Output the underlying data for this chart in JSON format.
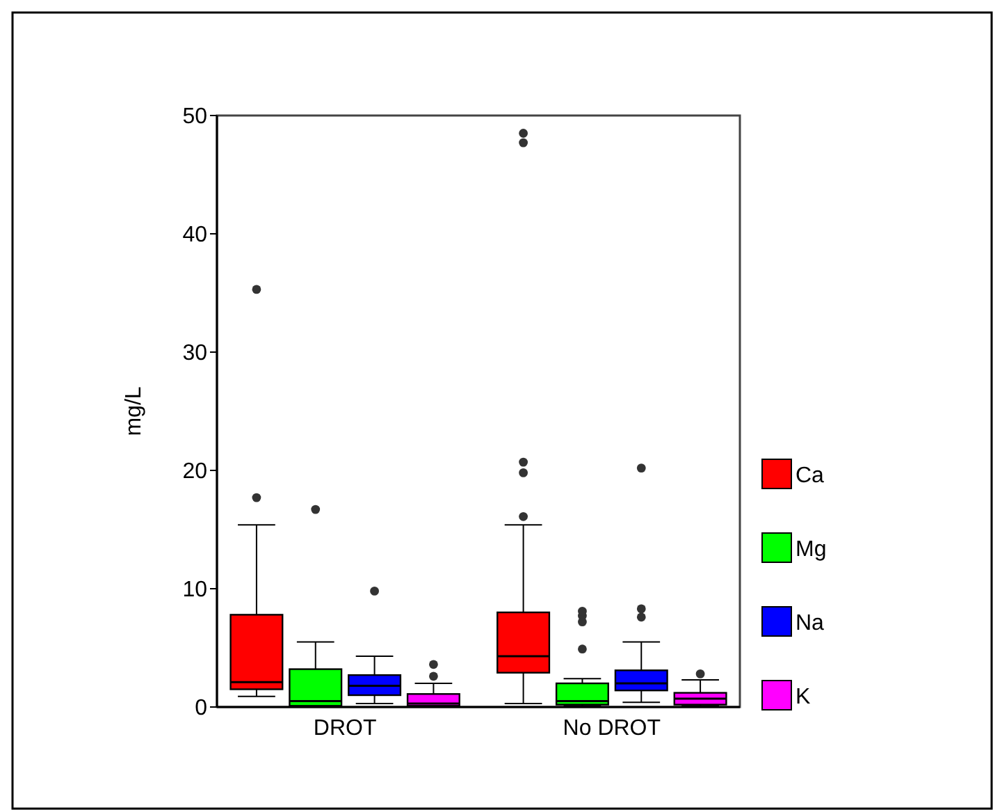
{
  "chart_data": {
    "type": "box",
    "ylabel": "mg/L",
    "categories": [
      "DROT",
      "No DROT"
    ],
    "ylim": [
      0,
      50
    ],
    "yticks": [
      0,
      10,
      20,
      30,
      40,
      50
    ],
    "legend": "right",
    "series": [
      {
        "name": "Ca",
        "color": "#ff0000",
        "boxes": [
          {
            "low": 0.9,
            "q1": 1.5,
            "median": 2.1,
            "q3": 7.8,
            "high": 15.4,
            "outliers": [
              17.7,
              35.3
            ]
          },
          {
            "low": 0.3,
            "q1": 2.9,
            "median": 4.3,
            "q3": 8.0,
            "high": 15.4,
            "outliers": [
              16.1,
              19.8,
              20.7,
              47.7,
              48.5
            ]
          }
        ]
      },
      {
        "name": "Mg",
        "color": "#00ff00",
        "boxes": [
          {
            "low": 0,
            "q1": 0.1,
            "median": 0.5,
            "q3": 3.2,
            "high": 5.5,
            "outliers": [
              16.7
            ]
          },
          {
            "low": 0.1,
            "q1": 0.2,
            "median": 0.5,
            "q3": 2.0,
            "high": 2.4,
            "outliers": [
              4.9,
              7.2,
              7.7,
              8.1
            ]
          }
        ]
      },
      {
        "name": "Na",
        "color": "#0000ff",
        "boxes": [
          {
            "low": 0.3,
            "q1": 1.0,
            "median": 1.8,
            "q3": 2.7,
            "high": 4.3,
            "outliers": [
              9.8
            ]
          },
          {
            "low": 0.4,
            "q1": 1.4,
            "median": 2.0,
            "q3": 3.1,
            "high": 5.5,
            "outliers": [
              7.6,
              8.3,
              20.2
            ]
          }
        ]
      },
      {
        "name": "K",
        "color": "#ff00ff",
        "boxes": [
          {
            "low": 0,
            "q1": 0.1,
            "median": 0.3,
            "q3": 1.1,
            "high": 2.0,
            "outliers": [
              2.6,
              3.6
            ]
          },
          {
            "low": 0.1,
            "q1": 0.2,
            "median": 0.7,
            "q3": 1.2,
            "high": 2.3,
            "outliers": [
              2.8
            ]
          }
        ]
      }
    ]
  }
}
